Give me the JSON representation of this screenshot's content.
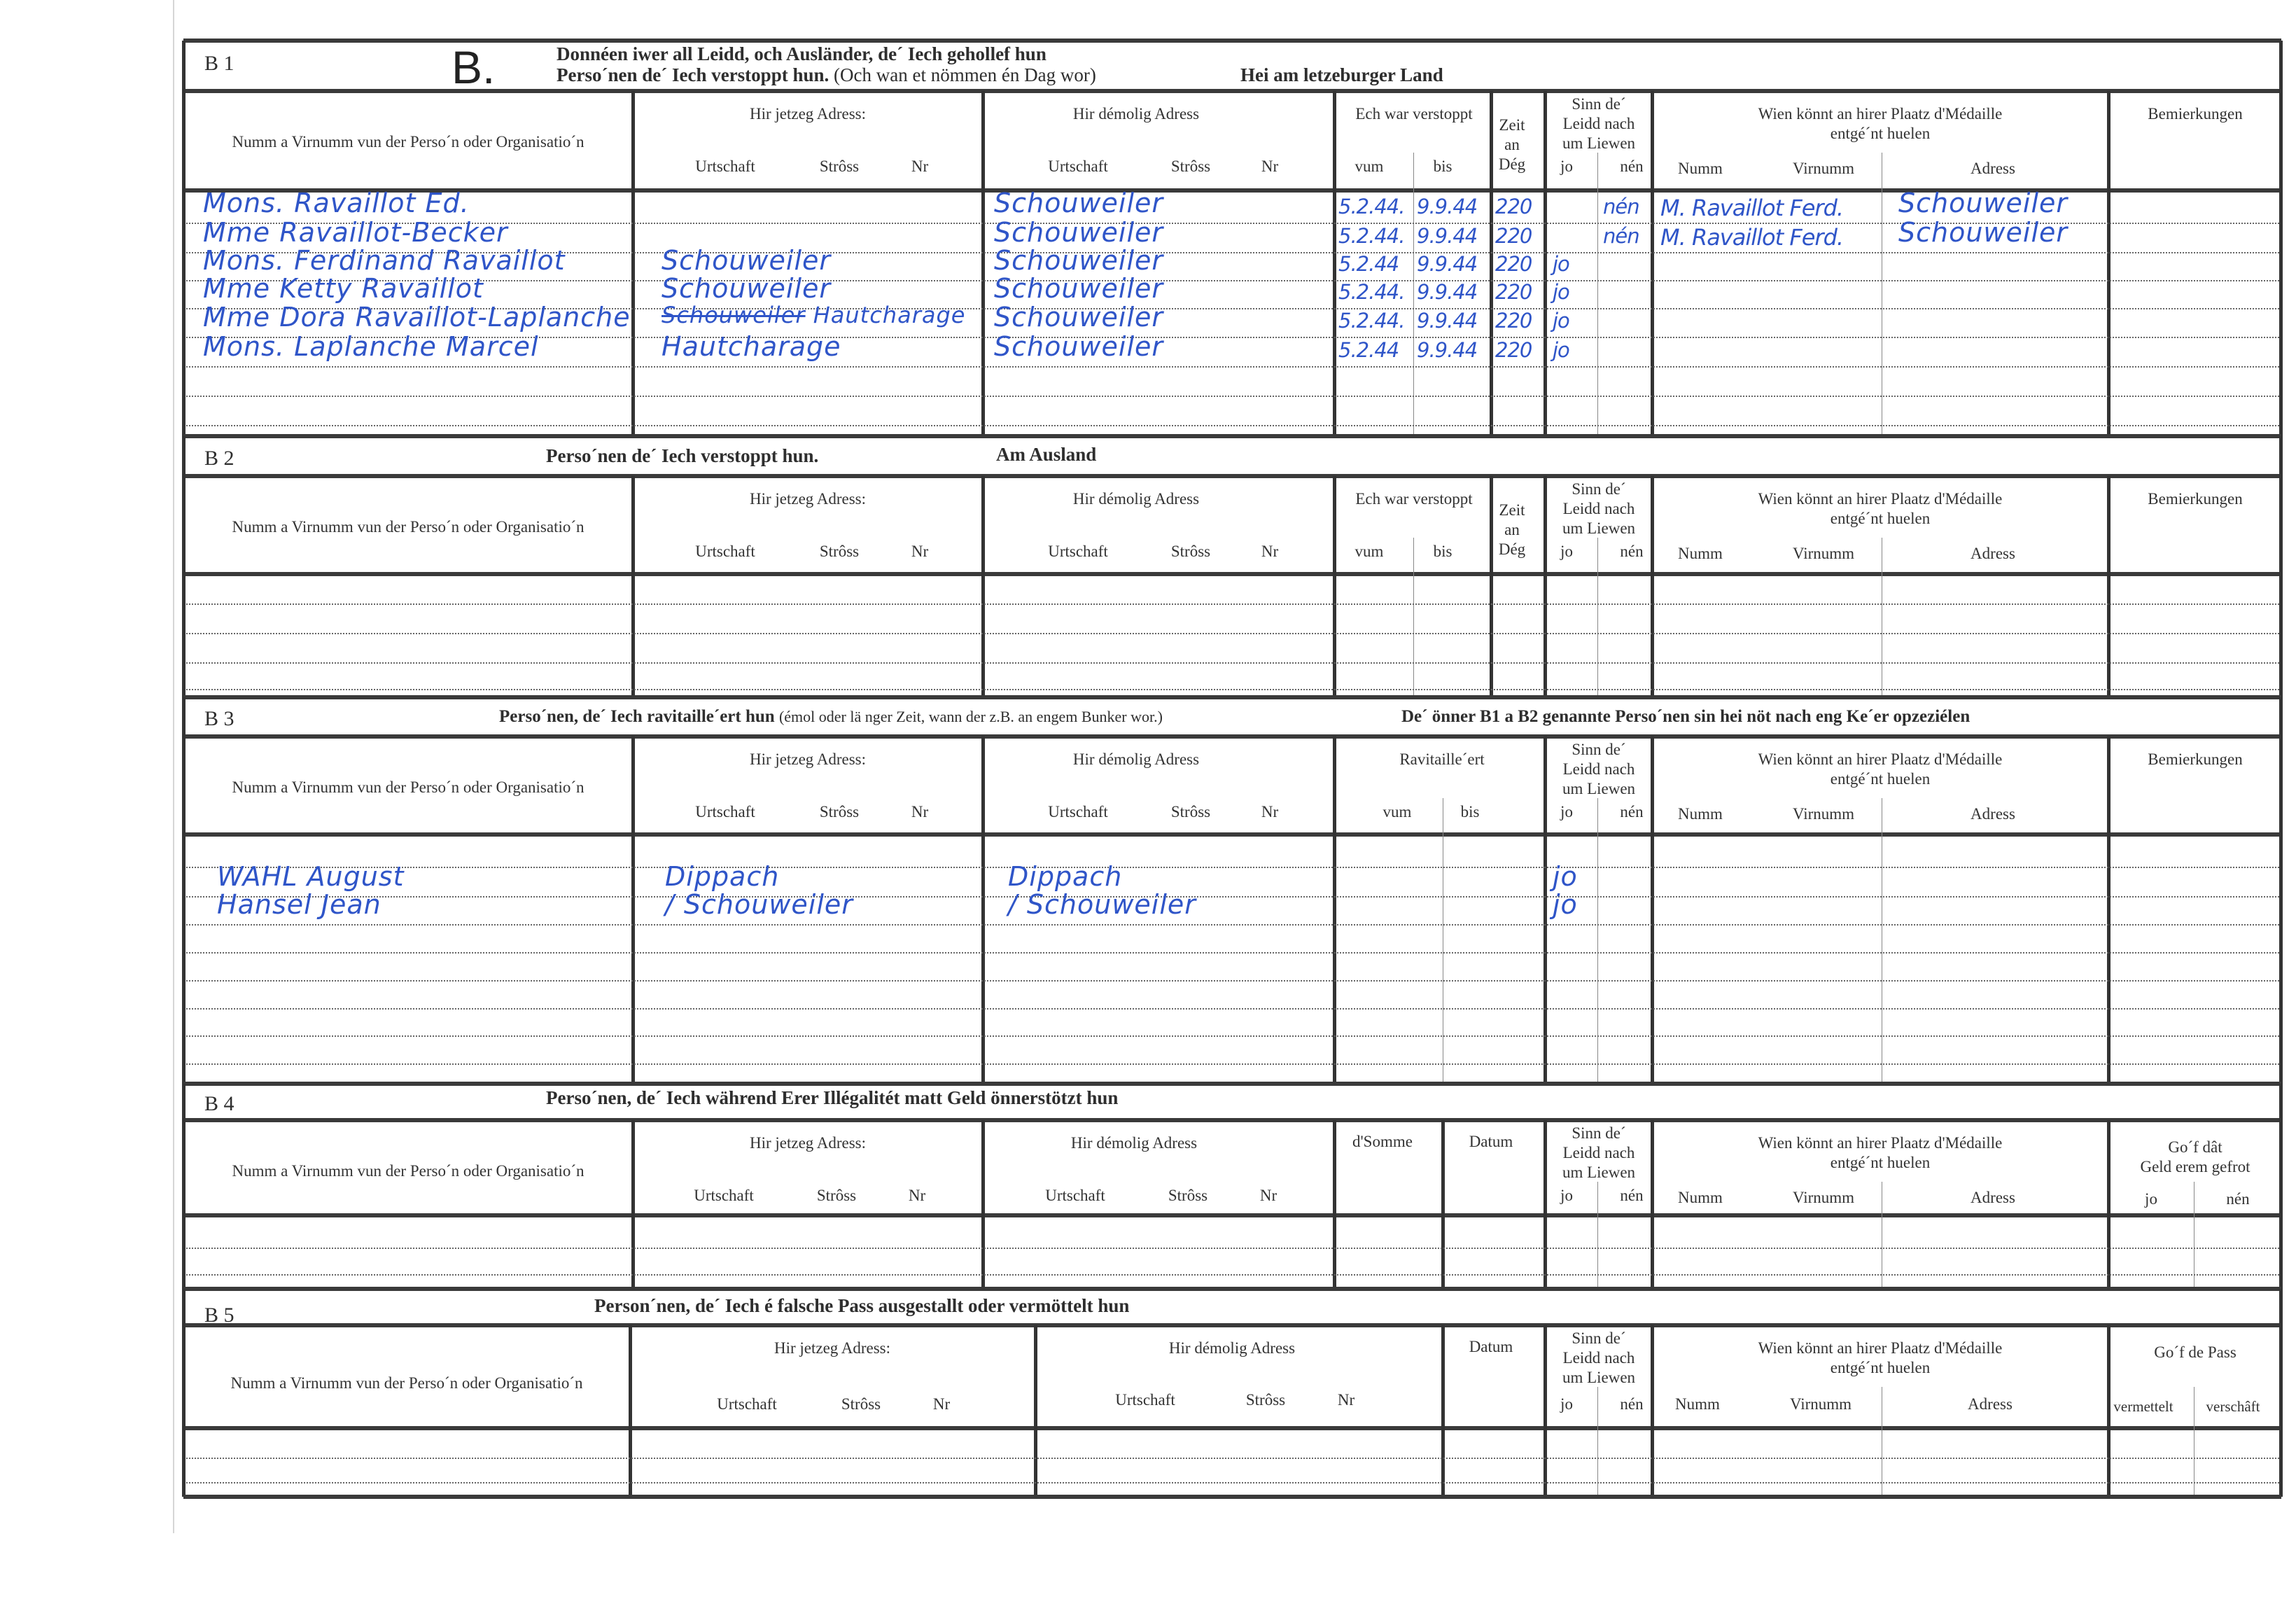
{
  "form": {
    "letter": "B."
  },
  "common": {
    "name_col": "Numm a Virnumm vun der Perso´n oder Organisatio´n",
    "jetzeg": "Hir jetzeg Adress:",
    "demolig": "Hir démolig Adress",
    "urtschaft": "Urtschaft",
    "stross": "Strôss",
    "nr": "Nr",
    "verstoppt": "Ech war verstoppt",
    "vum": "vum",
    "bis": "bis",
    "zeit": [
      "Zeit",
      "an",
      "Dég"
    ],
    "sinn": [
      "Sinn de´",
      "Leidd nach",
      "um Liewen"
    ],
    "jo": "jo",
    "nen": "nén",
    "wien": [
      "Wien könnt an hirer Plaatz d'Médaille",
      "entgé´nt huelen"
    ],
    "numm": "Numm",
    "virnumm": "Virnumm",
    "adress": "Adress",
    "bemierkungen": "Bemierkungen",
    "datum": "Datum"
  },
  "sections": {
    "b1": {
      "code": "B 1",
      "title1": "Donnéen iwer all Leidd, och Ausländer, de´ Iech gehollef hun",
      "title2": "Perso´nen de´ Iech verstoppt hun.",
      "title2_note": "(Och wan et nömmen én Dag wor)",
      "title3": "Hei am letzeburger Land",
      "rows": [
        {
          "name": "Mons. Ravaillot Ed.",
          "jetzeg": "",
          "demolig": "Schouweiler",
          "vum": "5.2.44.",
          "bis": "9.9.44",
          "zeit": "220",
          "jo": "",
          "nen": "nén",
          "medal_name": "M. Ravaillot Ferd.",
          "medal_adress": "Schouweiler"
        },
        {
          "name": "Mme Ravaillot-Becker",
          "jetzeg": "",
          "demolig": "Schouweiler",
          "vum": "5.2.44.",
          "bis": "9.9.44",
          "zeit": "220",
          "jo": "",
          "nen": "nén",
          "medal_name": "M. Ravaillot Ferd.",
          "medal_adress": "Schouweiler"
        },
        {
          "name": "Mons. Ferdinand Ravaillot",
          "jetzeg": "Schouweiler",
          "demolig": "Schouweiler",
          "vum": "5.2.44",
          "bis": "9.9.44",
          "zeit": "220",
          "jo": "jo",
          "nen": "",
          "medal_name": "",
          "medal_adress": ""
        },
        {
          "name": "Mme Ketty Ravaillot",
          "jetzeg": "Schouweiler",
          "demolig": "Schouweiler",
          "vum": "5.2.44.",
          "bis": "9.9.44",
          "zeit": "220",
          "jo": "jo",
          "nen": "",
          "medal_name": "",
          "medal_adress": ""
        },
        {
          "name": "Mme Dora Ravaillot-Laplanche",
          "jetzeg_struck": "Schouweiler",
          "jetzeg": "Hautcharage",
          "demolig": "Schouweiler",
          "vum": "5.2.44.",
          "bis": "9.9.44",
          "zeit": "220",
          "jo": "jo",
          "nen": "",
          "medal_name": "",
          "medal_adress": ""
        },
        {
          "name": "Mons. Laplanche Marcel",
          "jetzeg": "Hautcharage",
          "demolig": "Schouweiler",
          "vum": "5.2.44",
          "bis": "9.9.44",
          "zeit": "220",
          "jo": "jo",
          "nen": "",
          "medal_name": "",
          "medal_adress": ""
        }
      ]
    },
    "b2": {
      "code": "B 2",
      "title1": "Perso´nen de´ Iech verstoppt hun.",
      "title2": "Am Ausland",
      "rows": []
    },
    "b3": {
      "code": "B 3",
      "title1": "Perso´nen, de´ Iech ravitaille´ert hun",
      "title1_note": "(émol oder lä nger Zeit, wann der z.B. an engem Bunker wor.)",
      "title2": "De´ önner B1 a B2 genannte Perso´nen sin hei nöt nach eng Ke´er opzeziélen",
      "ravitailleert": "Ravitaille´ert",
      "rows": [
        {
          "name": "WAHL August",
          "jetzeg": "Dippach",
          "demolig": "Dippach",
          "jo": "jo"
        },
        {
          "name": "Hansel Jean",
          "jetzeg": "/ Schouweiler",
          "demolig": "/ Schouweiler",
          "jo": "jo"
        }
      ]
    },
    "b4": {
      "code": "B 4",
      "title1": "Perso´nen, de´ Iech während Erer Illégalitét matt Geld önnerstötzt hun",
      "somme": "d'Somme",
      "gof": [
        "Go´f dât",
        "Geld erem gefrot"
      ],
      "rows": []
    },
    "b5": {
      "code": "B 5",
      "title1": "Person´nen, de´ Iech é falsche Pass ausgestallt oder vermöttelt hun",
      "gof": "Go´f de Pass",
      "vermettelt": "vermettelt",
      "verschaft": "verschâft",
      "rows": []
    }
  },
  "colors": {
    "ink": "#2f55c8",
    "print": "#2e2e2e"
  }
}
